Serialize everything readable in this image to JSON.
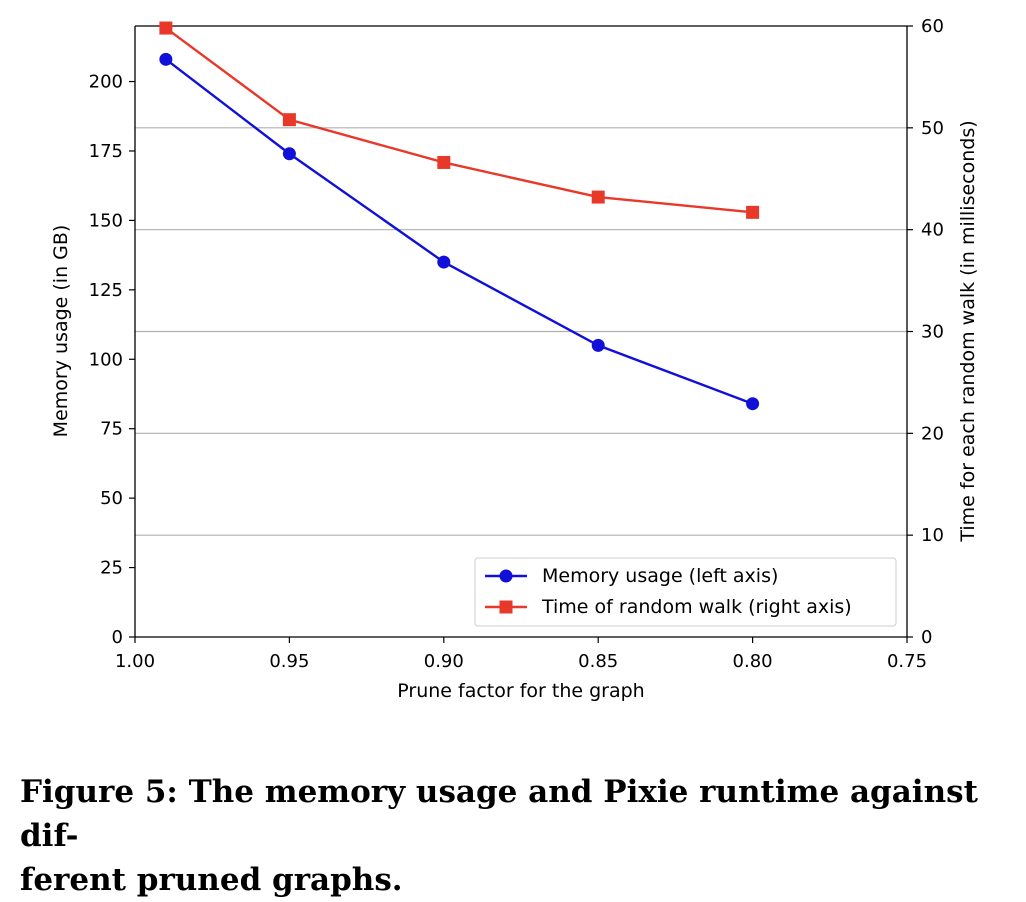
{
  "chart_data": {
    "type": "line",
    "xlabel": "Prune factor for the graph",
    "ylabel": "Memory usage (in GB)",
    "y2label": "Time for each random walk (in milliseconds)",
    "xlim": [
      1.0,
      0.75
    ],
    "ylim": [
      0,
      220
    ],
    "y2lim": [
      0,
      60
    ],
    "xticks": [
      "1.00",
      "0.95",
      "0.90",
      "0.85",
      "0.80",
      "0.75"
    ],
    "xtick_values": [
      1.0,
      0.95,
      0.9,
      0.85,
      0.8,
      0.75
    ],
    "yticks": [
      0,
      25,
      50,
      75,
      100,
      125,
      150,
      175,
      200
    ],
    "y2ticks": [
      0,
      10,
      20,
      30,
      40,
      50,
      60
    ],
    "grid": "horizontal lines at right-axis ticks",
    "legend_position": "lower-right",
    "series": [
      {
        "name": "Memory usage (left axis)",
        "axis": "left",
        "color": "#1010d8",
        "marker": "circle",
        "x": [
          0.99,
          0.95,
          0.9,
          0.85,
          0.8
        ],
        "values": [
          208,
          174,
          135,
          105,
          84
        ]
      },
      {
        "name": "Time of random walk (right axis)",
        "axis": "right",
        "color": "#e8382a",
        "marker": "square",
        "x": [
          0.99,
          0.95,
          0.9,
          0.85,
          0.8
        ],
        "values": [
          59.8,
          50.8,
          46.6,
          43.2,
          41.7
        ]
      }
    ]
  },
  "caption": {
    "line1": "Figure 5: The memory usage and Pixie runtime against dif-",
    "line2": "ferent pruned graphs."
  }
}
